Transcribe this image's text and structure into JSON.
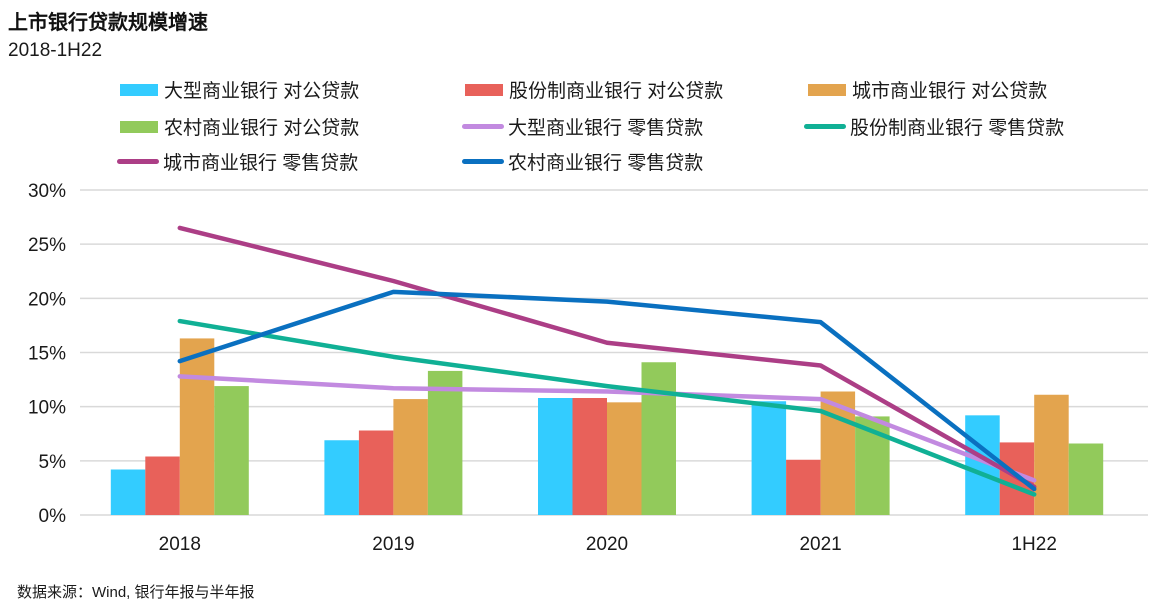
{
  "header": {
    "title": "上市银行贷款规模增速",
    "subtitle": "2018-1H22"
  },
  "source_note": "数据来源：Wind, 银行年报与半年报",
  "chart_data": {
    "type": "bar",
    "title": "上市银行贷款规模增速",
    "subtitle": "2018-1H22",
    "xlabel": "",
    "ylabel": "",
    "categories": [
      "2018",
      "2019",
      "2020",
      "2021",
      "1H22"
    ],
    "ylim": [
      0,
      30
    ],
    "yticks": [
      0,
      5,
      10,
      15,
      20,
      25,
      30
    ],
    "ytick_labels": [
      "0%",
      "5%",
      "10%",
      "15%",
      "20%",
      "25%",
      "30%"
    ],
    "grid": true,
    "legend_position": "top",
    "series": [
      {
        "name": "大型商业银行 对公贷款",
        "kind": "bar",
        "color": "#33CCFF",
        "values": [
          4.2,
          6.9,
          10.8,
          10.5,
          9.2
        ]
      },
      {
        "name": "股份制商业银行 对公贷款",
        "kind": "bar",
        "color": "#E8615A",
        "values": [
          5.4,
          7.8,
          10.8,
          5.1,
          6.7
        ]
      },
      {
        "name": "城市商业银行 对公贷款",
        "kind": "bar",
        "color": "#E3A44E",
        "values": [
          16.3,
          10.7,
          10.4,
          11.4,
          11.1
        ]
      },
      {
        "name": "农村商业银行 对公贷款",
        "kind": "bar",
        "color": "#92CA5B",
        "values": [
          11.9,
          13.3,
          14.1,
          9.1,
          6.6
        ]
      },
      {
        "name": "大型商业银行 零售贷款",
        "kind": "line",
        "color": "#C28AE0",
        "values": [
          12.8,
          11.7,
          11.4,
          10.7,
          3.2
        ]
      },
      {
        "name": "股份制商业银行 零售贷款",
        "kind": "line",
        "color": "#10B095",
        "values": [
          17.9,
          14.6,
          11.9,
          9.6,
          1.9
        ]
      },
      {
        "name": "城市商业银行 零售贷款",
        "kind": "line",
        "color": "#AC3E86",
        "values": [
          26.5,
          21.6,
          15.9,
          13.8,
          2.6
        ]
      },
      {
        "name": "农村商业银行 零售贷款",
        "kind": "line",
        "color": "#0A70C0",
        "values": [
          14.2,
          20.6,
          19.7,
          17.8,
          2.4
        ]
      }
    ]
  }
}
